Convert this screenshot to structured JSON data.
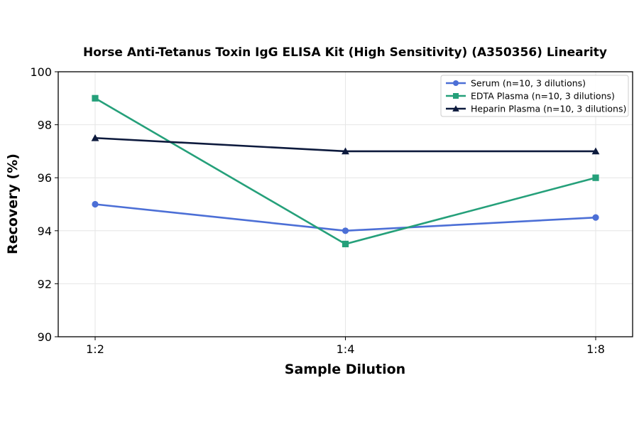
{
  "chart_data": {
    "type": "line",
    "title": "Horse Anti-Tetanus Toxin IgG ELISA Kit (High Sensitivity) (A350356) Linearity",
    "xlabel": "Sample Dilution",
    "ylabel": "Recovery (%)",
    "categories": [
      "1:2",
      "1:4",
      "1:8"
    ],
    "ylim": [
      90,
      100
    ],
    "yticks": [
      "90",
      "92",
      "94",
      "96",
      "98",
      "100"
    ],
    "grid": true,
    "legend_position": "top-right",
    "series": [
      {
        "name": "Serum (n=10, 3 dilutions)",
        "values": [
          95.0,
          94.0,
          94.5
        ],
        "color": "#4c6fd6",
        "marker": "circle"
      },
      {
        "name": "EDTA Plasma (n=10, 3 dilutions)",
        "values": [
          99.0,
          93.5,
          96.0
        ],
        "color": "#25a07a",
        "marker": "square"
      },
      {
        "name": "Heparin Plasma (n=10, 3 dilutions)",
        "values": [
          97.5,
          97.0,
          97.0
        ],
        "color": "#0d1a3d",
        "marker": "triangle"
      }
    ]
  }
}
